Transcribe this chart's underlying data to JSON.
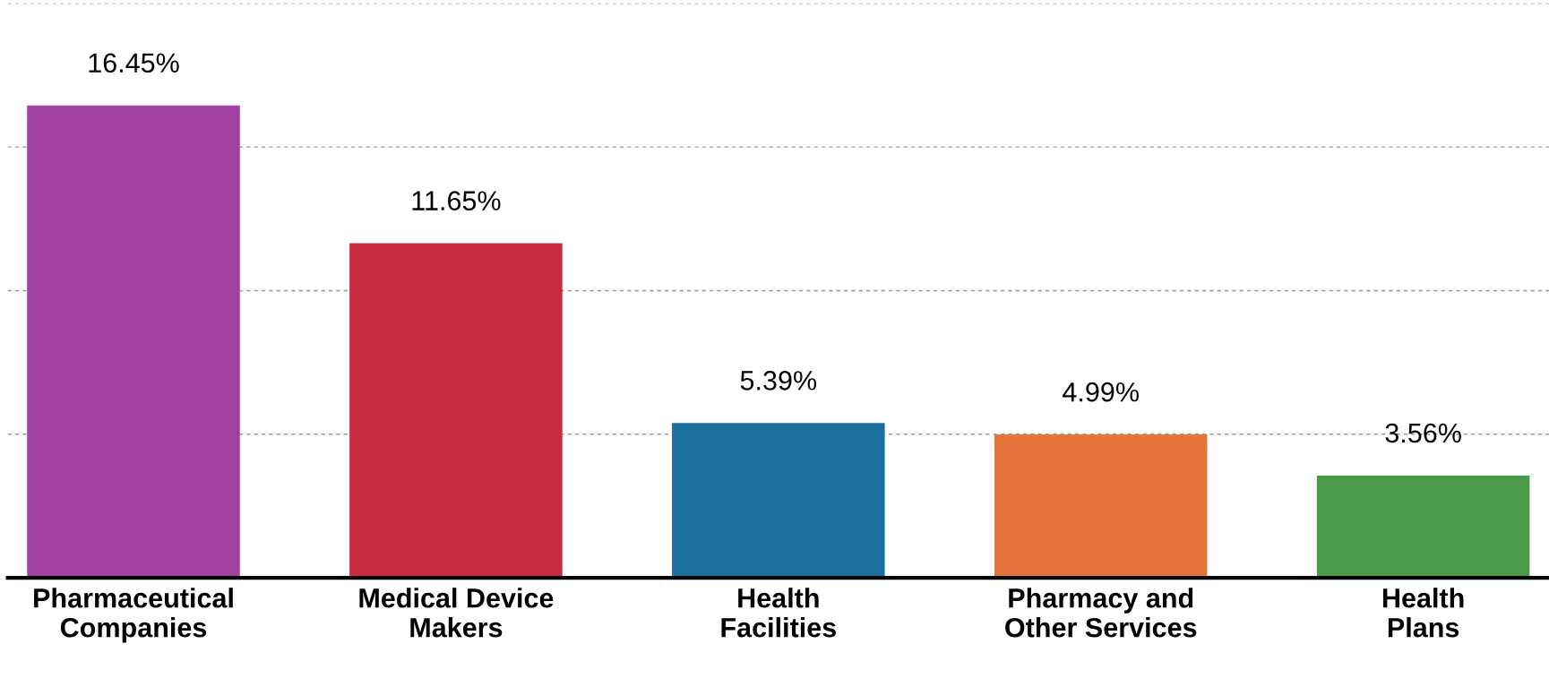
{
  "chart_data": {
    "type": "bar",
    "categories": [
      "Pharmaceutical\nCompanies",
      "Medical Device\nMakers",
      "Health\nFacilities",
      "Pharmacy and\nOther Services",
      "Health\nPlans"
    ],
    "values": [
      16.45,
      11.65,
      5.39,
      4.99,
      3.56
    ],
    "colors": [
      "#a0409f",
      "#c82a42",
      "#1b6f9c",
      "#e6733a",
      "#4a9a48"
    ],
    "value_labels": [
      "16.45%",
      "11.65%",
      "5.39%",
      "4.99%",
      "3.56%"
    ],
    "ylim": [
      0,
      20
    ],
    "yticks": [
      {
        "value": 5,
        "label": null
      },
      {
        "value": 10,
        "label": null
      },
      {
        "value": 15,
        "label": null
      },
      {
        "value": 20,
        "label": null
      }
    ],
    "tick_labels": "x",
    "grid": "y",
    "legend": false
  }
}
